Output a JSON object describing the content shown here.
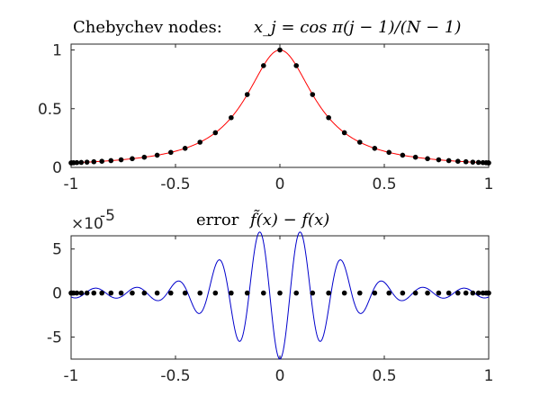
{
  "chart_data": [
    {
      "type": "line",
      "title_text": "Chebychev nodes:",
      "title_math": "x_j = cos π(j − 1)/(N − 1)",
      "xlim": [
        -1,
        1
      ],
      "ylim": [
        0,
        1.05
      ],
      "xticks": [
        "-1",
        "-0.5",
        "0",
        "0.5",
        "1"
      ],
      "yticks": [
        "0",
        "0.5",
        "1"
      ],
      "xtick_values": [
        -1,
        -0.5,
        0,
        0.5,
        1
      ],
      "ytick_values": [
        0,
        0.5,
        1
      ],
      "grid": false,
      "series": [
        {
          "kind": "curve",
          "function": "1/(1+25x^2)",
          "color": "#ff0000"
        },
        {
          "kind": "markers",
          "nodes": 41,
          "color": "#000000",
          "x": [
            -1.0,
            -0.9969,
            -0.9877,
            -0.9724,
            -0.9511,
            -0.9239,
            -0.891,
            -0.8526,
            -0.809,
            -0.7604,
            -0.7071,
            -0.6494,
            -0.5878,
            -0.5225,
            -0.454,
            -0.3827,
            -0.309,
            -0.2334,
            -0.1564,
            -0.0785,
            0.0,
            0.0785,
            0.1564,
            0.2334,
            0.309,
            0.3827,
            0.454,
            0.5225,
            0.5878,
            0.6494,
            0.7071,
            0.7604,
            0.809,
            0.8526,
            0.891,
            0.9239,
            0.9511,
            0.9724,
            0.9877,
            0.9969,
            1.0
          ],
          "y": [
            0.0385,
            0.0387,
            0.0394,
            0.0406,
            0.0423,
            0.0448,
            0.048,
            0.0521,
            0.0576,
            0.0647,
            0.0741,
            0.0866,
            0.1038,
            0.1278,
            0.1625,
            0.2146,
            0.2952,
            0.4234,
            0.6205,
            0.8665,
            1.0,
            0.8665,
            0.6205,
            0.4234,
            0.2952,
            0.2146,
            0.1625,
            0.1278,
            0.1038,
            0.0866,
            0.0741,
            0.0647,
            0.0576,
            0.0521,
            0.048,
            0.0448,
            0.0423,
            0.0406,
            0.0394,
            0.0387,
            0.0385
          ]
        }
      ]
    },
    {
      "type": "line",
      "title_text": "error",
      "title_math": "f̃(x) − f(x)",
      "exponent_label": "×10",
      "exponent_power": "-5",
      "xlim": [
        -1,
        1
      ],
      "ylim": [
        -7.5,
        6.5
      ],
      "xticks": [
        "-1",
        "-0.5",
        "0",
        "0.5",
        "1"
      ],
      "yticks": [
        "5",
        "0",
        "-5"
      ],
      "xtick_values": [
        -1,
        -0.5,
        0,
        0.5,
        1
      ],
      "ytick_values": [
        5,
        0,
        -5
      ],
      "grid": false,
      "series": [
        {
          "kind": "curve",
          "description": "oscillating error, amplitude peaks near x=0 (≈ +6.5 at x≈±0.1, ≈ −7.5 at x=0), decaying toward ±1",
          "color": "#0000cc"
        },
        {
          "kind": "markers",
          "nodes": 41,
          "color": "#000000",
          "y_all": 0
        }
      ]
    }
  ]
}
